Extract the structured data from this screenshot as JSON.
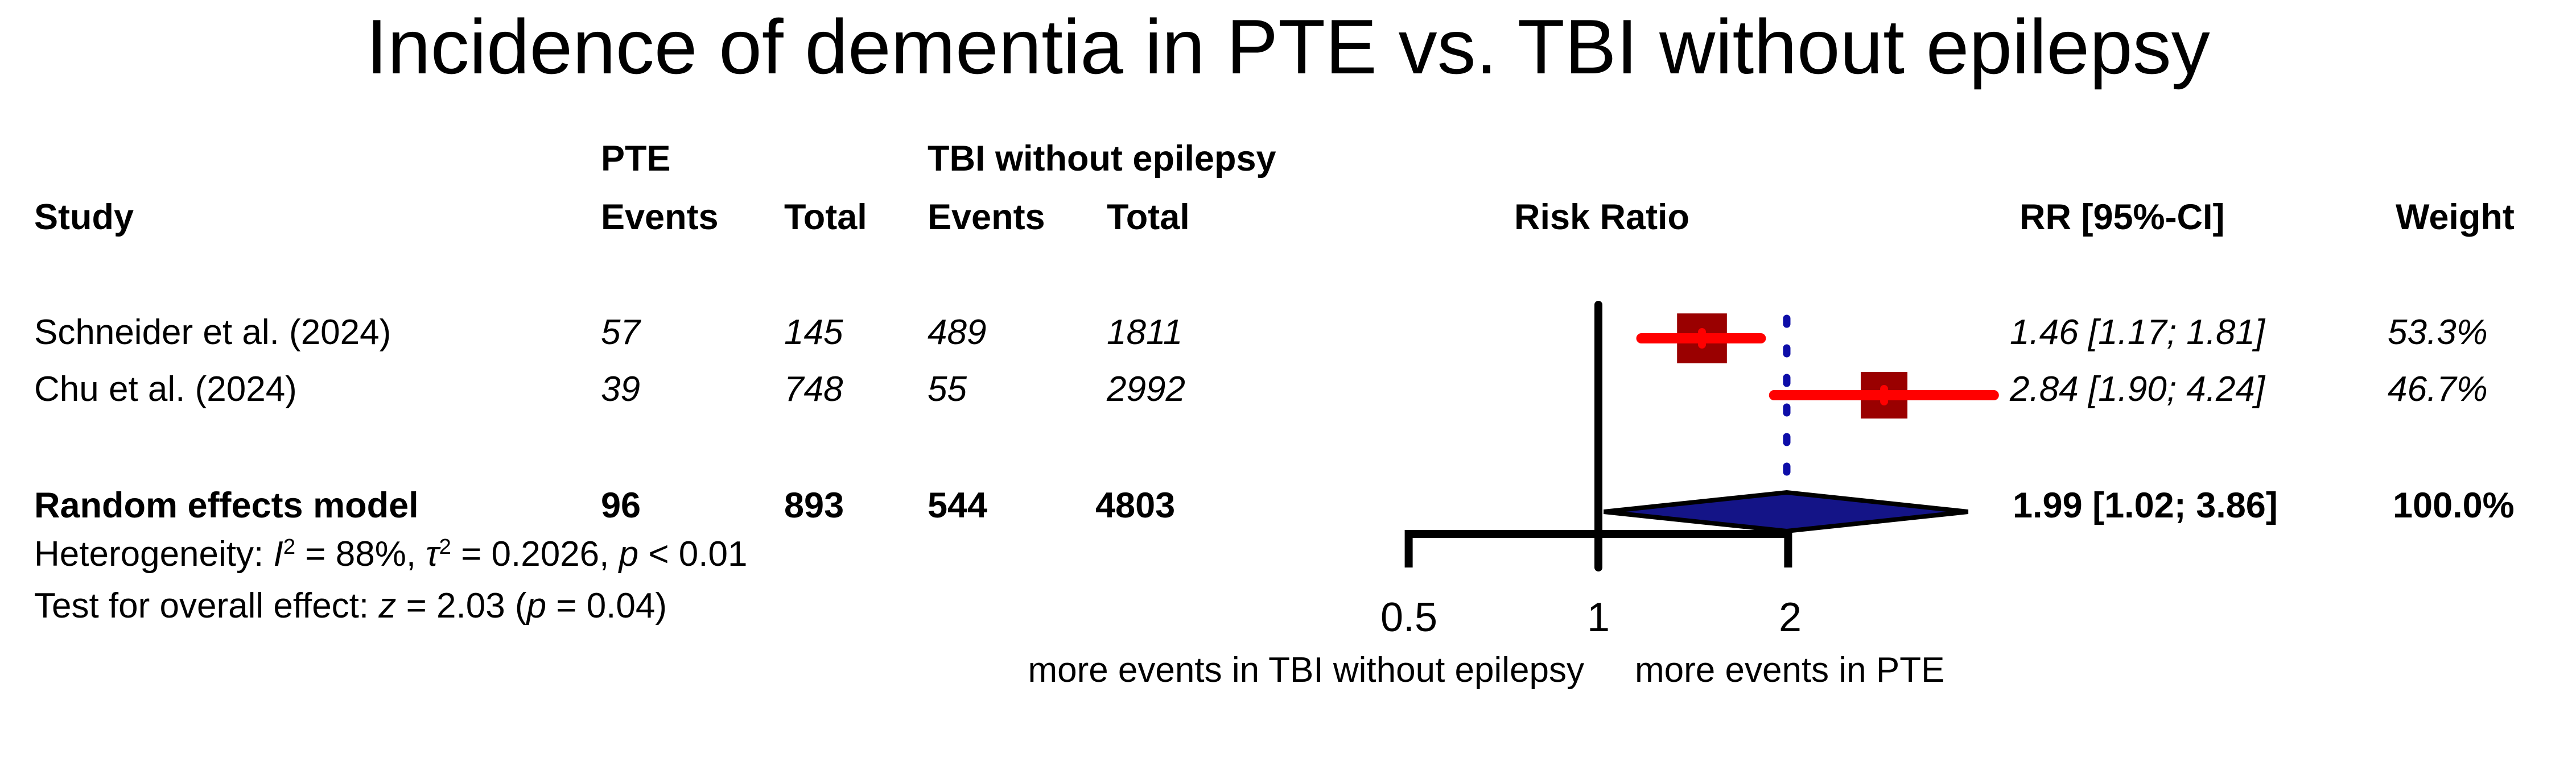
{
  "title": "Incidence of dementia in PTE vs. TBI without epilepsy",
  "table": {
    "group_headers": {
      "pte": "PTE",
      "tbi": "TBI without epilepsy"
    },
    "columns": {
      "study": "Study",
      "pte_events": "Events",
      "pte_total": "Total",
      "tbi_events": "Events",
      "tbi_total": "Total",
      "risk_ratio": "Risk Ratio",
      "rr_ci": "RR [95%-CI]",
      "weight": "Weight"
    },
    "rows": [
      {
        "study": "Schneider et al. (2024)",
        "pte_events": "57",
        "pte_total": "145",
        "tbi_events": "489",
        "tbi_total": "1811",
        "rr_ci": "1.46 [1.17; 1.81]",
        "weight": "53.3%"
      },
      {
        "study": "Chu et al. (2024)",
        "pte_events": "39",
        "pte_total": "748",
        "tbi_events": "55",
        "tbi_total": "2992",
        "rr_ci": "2.84 [1.90; 4.24]",
        "weight": "46.7%"
      }
    ],
    "summary_row": {
      "study": "Random effects model",
      "pte_events": "96",
      "pte_total": "893",
      "tbi_events": "544",
      "tbi_total": "4803",
      "rr_ci": "1.99 [1.02; 3.86]",
      "weight": "100.0%"
    }
  },
  "stats": {
    "heterogeneity": [
      {
        "t": "Heterogeneity: "
      },
      {
        "t": "I",
        "i": true
      },
      {
        "t": "2",
        "sup": true
      },
      {
        "t": " = 88%, "
      },
      {
        "t": "τ",
        "i": true
      },
      {
        "t": "2",
        "sup": true
      },
      {
        "t": " = 0.2026, "
      },
      {
        "t": "p",
        "i": true
      },
      {
        "t": " < 0.01"
      }
    ],
    "overall_effect": [
      {
        "t": "Test for overall effect: "
      },
      {
        "t": "z",
        "i": true
      },
      {
        "t": " = 2.03 ("
      },
      {
        "t": "p",
        "i": true
      },
      {
        "t": " = 0.04)"
      }
    ]
  },
  "chart_data": {
    "type": "forest",
    "x_scale": "log",
    "ref_line": 1,
    "axis_ticks": [
      "0.5",
      "1",
      "2"
    ],
    "axis_tick_values": [
      0.5,
      1,
      2
    ],
    "axis_range": [
      0.5,
      2
    ],
    "studies": [
      {
        "label": "Schneider et al. (2024)",
        "rr": 1.46,
        "ci_low": 1.17,
        "ci_high": 1.81,
        "weight_pct": 53.3
      },
      {
        "label": "Chu et al. (2024)",
        "rr": 2.84,
        "ci_low": 1.9,
        "ci_high": 4.24,
        "weight_pct": 46.7
      }
    ],
    "overall": {
      "label": "Random effects model",
      "rr": 1.99,
      "ci_low": 1.02,
      "ci_high": 3.86,
      "weight_pct": 100.0
    },
    "overall_dashed_line_at": 1.99,
    "xlabel_left": "more events in TBI without epilepsy",
    "xlabel_right": "more events in PTE",
    "colors": {
      "square": "#9a0000",
      "ci_line": "#ff0000",
      "point_marker": "#ff0000",
      "diamond_fill": "#141487",
      "diamond_border": "#000000",
      "reference_line": "#000000",
      "dashed_overall_line": "#0d0da8",
      "axis": "#000000",
      "text": "#000000"
    }
  }
}
